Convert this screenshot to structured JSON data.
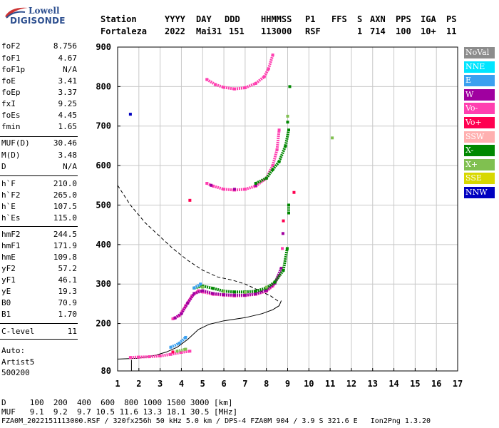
{
  "logo": {
    "line1": "Lowell",
    "line2": "DIGISONDE"
  },
  "header": {
    "row1": [
      "Station",
      "YYYY",
      "DAY",
      "DDD",
      "HHMMSS",
      "P1",
      "FFS",
      "S",
      "AXN",
      "PPS",
      "IGA",
      "PS"
    ],
    "row2": [
      "Fortaleza",
      "2022",
      "Mai31",
      "151",
      "113000",
      "RSF",
      "",
      "1",
      "714",
      "100",
      "10+",
      "11"
    ]
  },
  "params": [
    {
      "name": "foF2",
      "value": "8.756"
    },
    {
      "name": "foF1",
      "value": "4.67"
    },
    {
      "name": "foF1p",
      "value": "N/A"
    },
    {
      "name": "foE",
      "value": "3.41"
    },
    {
      "name": "foEp",
      "value": "3.37"
    },
    {
      "name": "fxI",
      "value": "9.25"
    },
    {
      "name": "foEs",
      "value": "4.45"
    },
    {
      "name": "fmin",
      "value": "1.65"
    },
    {
      "name": "MUF(D)",
      "value": "30.46"
    },
    {
      "name": "M(D)",
      "value": "3.48"
    },
    {
      "name": "D",
      "value": "N/A"
    },
    {
      "name": "h`F",
      "value": "210.0"
    },
    {
      "name": "h`F2",
      "value": "265.0"
    },
    {
      "name": "h`E",
      "value": "107.5"
    },
    {
      "name": "h`Es",
      "value": "115.0"
    },
    {
      "name": "hmF2",
      "value": "244.5"
    },
    {
      "name": "hmF1",
      "value": "171.9"
    },
    {
      "name": "hmE",
      "value": "109.8"
    },
    {
      "name": "yF2",
      "value": "57.2"
    },
    {
      "name": "yF1",
      "value": "46.1"
    },
    {
      "name": "yE",
      "value": "19.3"
    },
    {
      "name": "B0",
      "value": "70.9"
    },
    {
      "name": "B1",
      "value": "1.70"
    },
    {
      "name": "C-level",
      "value": "11"
    }
  ],
  "autoscaler": {
    "line1": "Auto:",
    "line2": "Artist5",
    "line3": "500200"
  },
  "legend": [
    {
      "label": "NoVal",
      "color": "#8c8c8c"
    },
    {
      "label": "NNE",
      "color": "#00e5ff"
    },
    {
      "label": "E",
      "color": "#3aa0f0"
    },
    {
      "label": "W",
      "color": "#a000a0"
    },
    {
      "label": "Vo-",
      "color": "#ff3fb0"
    },
    {
      "label": "Vo+",
      "color": "#ff0050"
    },
    {
      "label": "SSW",
      "color": "#ffb0b0"
    },
    {
      "label": "X-",
      "color": "#008800"
    },
    {
      "label": "X+",
      "color": "#80c050"
    },
    {
      "label": "SSE",
      "color": "#d8d800"
    },
    {
      "label": "NNW",
      "color": "#0000c0"
    }
  ],
  "footer": {
    "line1": "D     100  200  400  600  800 1000 1500 3000 [km]",
    "line2": "MUF   9.1  9.2  9.7 10.5 11.6 13.3 18.1 30.5 [MHz]",
    "line3": "FZA0M_2022151113000.RSF / 320fx256h 50 kHz 5.0 km / DPS-4 FZA0M 904 / 3.9 S 321.6 E   Ion2Png 1.3.20"
  },
  "chart_data": {
    "type": "scatter",
    "xlim": [
      1,
      17
    ],
    "ylim": [
      80,
      900
    ],
    "xticks": [
      1,
      2,
      3,
      4,
      5,
      6,
      7,
      8,
      9,
      10,
      11,
      12,
      13,
      14,
      15,
      16,
      17
    ],
    "yticks": [
      80,
      200,
      300,
      400,
      500,
      600,
      700,
      800,
      900
    ],
    "grid": true,
    "series": [
      {
        "name": "Vo-",
        "color": "#ff3fb0",
        "points": [
          [
            1.6,
            114
          ],
          [
            2.0,
            115
          ],
          [
            2.5,
            116
          ],
          [
            3.0,
            118
          ],
          [
            3.5,
            122
          ],
          [
            4.0,
            127
          ],
          [
            4.4,
            130
          ],
          [
            3.6,
            212
          ],
          [
            3.9,
            220
          ],
          [
            4.2,
            245
          ],
          [
            4.5,
            270
          ],
          [
            4.8,
            283
          ],
          [
            5.0,
            280
          ],
          [
            5.5,
            274
          ],
          [
            6.0,
            272
          ],
          [
            6.5,
            270
          ],
          [
            7.0,
            271
          ],
          [
            7.5,
            274
          ],
          [
            8.0,
            282
          ],
          [
            8.3,
            295
          ],
          [
            8.6,
            322
          ],
          [
            8.75,
            390
          ],
          [
            5.2,
            555
          ],
          [
            5.5,
            548
          ],
          [
            6.0,
            540
          ],
          [
            6.5,
            538
          ],
          [
            7.0,
            540
          ],
          [
            7.5,
            548
          ],
          [
            8.0,
            568
          ],
          [
            8.3,
            600
          ],
          [
            8.5,
            640
          ],
          [
            8.6,
            690
          ],
          [
            5.2,
            818
          ],
          [
            5.6,
            805
          ],
          [
            6.0,
            798
          ],
          [
            6.5,
            794
          ],
          [
            7.0,
            797
          ],
          [
            7.5,
            808
          ],
          [
            7.9,
            825
          ],
          [
            8.1,
            845
          ],
          [
            8.3,
            880
          ]
        ]
      },
      {
        "name": "W",
        "color": "#a000a0",
        "points": [
          [
            3.7,
            214
          ],
          [
            4.0,
            225
          ],
          [
            4.3,
            252
          ],
          [
            4.6,
            276
          ],
          [
            5.0,
            283
          ],
          [
            5.5,
            276
          ],
          [
            6.0,
            273
          ],
          [
            6.5,
            272
          ],
          [
            7.0,
            272
          ],
          [
            7.5,
            275
          ],
          [
            8.0,
            284
          ],
          [
            8.4,
            302
          ],
          [
            8.7,
            340
          ],
          [
            8.78,
            428
          ],
          [
            5.4,
            550
          ],
          [
            6.5,
            540
          ],
          [
            7.5,
            550
          ]
        ]
      },
      {
        "name": "X-",
        "color": "#008800",
        "points": [
          [
            4.6,
            290
          ],
          [
            5.0,
            295
          ],
          [
            5.5,
            289
          ],
          [
            6.0,
            282
          ],
          [
            6.5,
            280
          ],
          [
            7.0,
            280
          ],
          [
            7.5,
            282
          ],
          [
            8.0,
            290
          ],
          [
            8.4,
            305
          ],
          [
            8.8,
            335
          ],
          [
            8.98,
            390
          ],
          [
            7.5,
            555
          ],
          [
            8.0,
            568
          ],
          [
            8.3,
            590
          ],
          [
            8.6,
            610
          ],
          [
            8.9,
            650
          ],
          [
            9.05,
            690
          ],
          [
            9.05,
            480
          ],
          [
            9.05,
            500
          ],
          [
            9.0,
            710
          ],
          [
            9.1,
            800
          ]
        ]
      },
      {
        "name": "X+",
        "color": "#80c050",
        "points": [
          [
            3.8,
            130
          ],
          [
            4.2,
            135
          ],
          [
            5.0,
            292
          ],
          [
            6.0,
            281
          ],
          [
            7.0,
            279
          ],
          [
            8.0,
            292
          ],
          [
            9.0,
            725
          ],
          [
            11.1,
            670
          ]
        ]
      },
      {
        "name": "E",
        "color": "#3aa0f0",
        "points": [
          [
            3.5,
            140
          ],
          [
            3.9,
            150
          ],
          [
            4.2,
            165
          ],
          [
            4.6,
            290
          ],
          [
            4.9,
            300
          ]
        ]
      },
      {
        "name": "Vo+",
        "color": "#ff0050",
        "points": [
          [
            3.6,
            128
          ],
          [
            4.4,
            512
          ],
          [
            8.8,
            460
          ],
          [
            9.3,
            532
          ]
        ]
      },
      {
        "name": "NNW",
        "color": "#0000c0",
        "points": [
          [
            1.6,
            730
          ]
        ]
      }
    ],
    "profile_solid": [
      [
        1,
        110
      ],
      [
        2,
        112
      ],
      [
        2.8,
        120
      ],
      [
        3.3,
        128
      ],
      [
        3.8,
        140
      ],
      [
        4.3,
        160
      ],
      [
        4.8,
        185
      ],
      [
        5.3,
        198
      ],
      [
        6,
        207
      ],
      [
        7,
        215
      ],
      [
        7.8,
        225
      ],
      [
        8.3,
        235
      ],
      [
        8.6,
        245
      ],
      [
        8.7,
        258
      ]
    ],
    "profile_dashed": [
      [
        1,
        550
      ],
      [
        1.6,
        500
      ],
      [
        2.3,
        455
      ],
      [
        3.0,
        420
      ],
      [
        3.6,
        390
      ],
      [
        4.3,
        360
      ],
      [
        5.0,
        335
      ],
      [
        5.7,
        318
      ],
      [
        6.4,
        310
      ],
      [
        7.0,
        300
      ],
      [
        7.6,
        285
      ],
      [
        8.2,
        270
      ],
      [
        8.6,
        255
      ]
    ],
    "fmin_line": [
      [
        1.65,
        80
      ],
      [
        1.65,
        108
      ]
    ]
  }
}
